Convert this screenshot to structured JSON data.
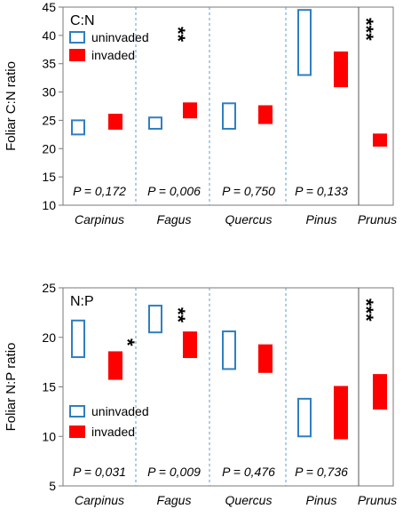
{
  "chart_data": [
    {
      "type": "box",
      "panel_label": "C:N",
      "ylabel": "Foliar C:N ratio",
      "ylim": [
        10,
        45
      ],
      "yticks": [
        10,
        15,
        20,
        25,
        30,
        35,
        40,
        45
      ],
      "categories": [
        "Carpinus",
        "Fagus",
        "Quercus",
        "Pinus",
        "Prunus"
      ],
      "legend": [
        "uninvaded",
        "invaded"
      ],
      "series": [
        {
          "name": "uninvaded",
          "color": "#2f7fc0",
          "style": "outline",
          "ranges": [
            [
              22.5,
              25
            ],
            [
              23.5,
              25.5
            ],
            [
              23.5,
              28
            ],
            [
              33,
              44.5
            ],
            null
          ]
        },
        {
          "name": "invaded",
          "color": "#ff0000",
          "style": "filled",
          "ranges": [
            [
              23.5,
              26
            ],
            [
              25.5,
              28
            ],
            [
              24.5,
              27.5
            ],
            [
              31,
              37
            ],
            [
              20.5,
              22.5
            ]
          ]
        }
      ],
      "p_values": [
        "P = 0,172",
        "P = 0,006",
        "P = 0,750",
        "P = 0,133"
      ],
      "significance": [
        {
          "category": "Fagus",
          "text": "**"
        },
        {
          "category": "Prunus",
          "text": "***"
        }
      ]
    },
    {
      "type": "box",
      "panel_label": "N:P",
      "ylabel": "Foliar N:P ratio",
      "ylim": [
        5,
        25
      ],
      "yticks": [
        5,
        10,
        15,
        20,
        25
      ],
      "categories": [
        "Carpinus",
        "Fagus",
        "Quercus",
        "Pinus",
        "Prunus"
      ],
      "legend": [
        "uninvaded",
        "invaded"
      ],
      "series": [
        {
          "name": "uninvaded",
          "color": "#2f7fc0",
          "style": "outline",
          "ranges": [
            [
              18,
              21.7
            ],
            [
              20.5,
              23.2
            ],
            [
              16.8,
              20.6
            ],
            [
              10,
              13.8
            ],
            null
          ]
        },
        {
          "name": "invaded",
          "color": "#ff0000",
          "style": "filled",
          "ranges": [
            [
              15.8,
              18.5
            ],
            [
              18,
              20.5
            ],
            [
              16.5,
              19.2
            ],
            [
              9.8,
              15
            ],
            [
              12.8,
              16.2
            ]
          ]
        }
      ],
      "p_values": [
        "P = 0,031",
        "P = 0,009",
        "P = 0,476",
        "P = 0,736"
      ],
      "significance": [
        {
          "category": "Carpinus",
          "text": "*"
        },
        {
          "category": "Fagus",
          "text": "**"
        },
        {
          "category": "Prunus",
          "text": "***"
        }
      ]
    }
  ]
}
